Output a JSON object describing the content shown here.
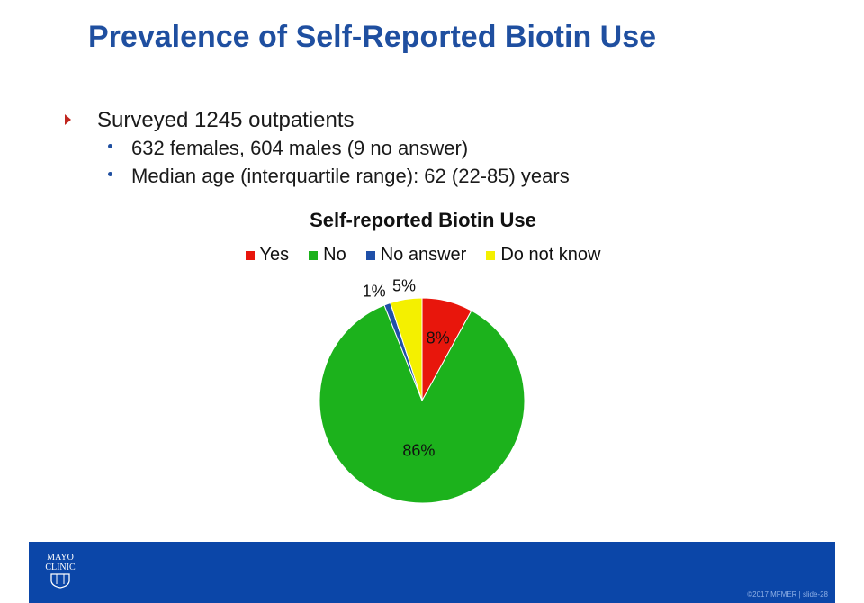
{
  "slide": {
    "title": "Prevalence of Self-Reported Biotin Use",
    "bullet_main": "Surveyed  1245 outpatients",
    "sub_bullets": [
      "632 females, 604 males (9 no answer)",
      "Median age (interquartile range): 62 (22-85) years"
    ]
  },
  "chart_data": {
    "type": "pie",
    "title": "Self-reported Biotin Use",
    "legend_position": "top",
    "slices": [
      {
        "name": "Yes",
        "value": 8,
        "label": "8%",
        "color": "#e8160c"
      },
      {
        "name": "No",
        "value": 86,
        "label": "86%",
        "color": "#1cb21c"
      },
      {
        "name": "No answer",
        "value": 1,
        "label": "1%",
        "color": "#1f4fa8"
      },
      {
        "name": "Do not know",
        "value": 5,
        "label": "5%",
        "color": "#f4f000"
      }
    ]
  },
  "footer": {
    "logo_line1": "MAYO",
    "logo_line2": "CLINIC",
    "copyright": "©2017 MFMER  |  slide-28",
    "logo_icon": "mayo-shield-icon",
    "background_color": "#0b46a8"
  }
}
